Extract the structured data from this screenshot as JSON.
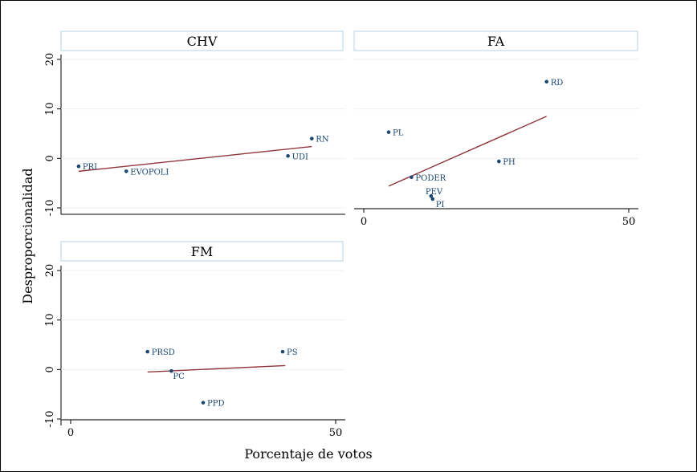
{
  "figure": {
    "ylabel": "Desproporcionalidad",
    "xlabel": "Porcentaje de votos"
  },
  "style": {
    "point_color": "#1a476f",
    "label_color": "#1a476f",
    "fit_color": "#90353b",
    "strip_border": "#b6d2e4",
    "axis_color": "#000000"
  },
  "chart_data": [
    {
      "type": "scatter",
      "title": "CHV",
      "xlim": [
        0,
        50
      ],
      "ylim": [
        -10,
        20
      ],
      "xticks": [],
      "yticks": [
        -10,
        0,
        10,
        20
      ],
      "points": [
        {
          "label": "PRI",
          "x": 1.5,
          "y": -1.6
        },
        {
          "label": "EVOPOLI",
          "x": 10.5,
          "y": -2.6
        },
        {
          "label": "RN",
          "x": 45.5,
          "y": 4.0
        },
        {
          "label": "UDI",
          "x": 41.0,
          "y": 0.5
        }
      ],
      "fit": {
        "x": [
          1.5,
          45.5
        ],
        "y": [
          -2.6,
          2.4
        ]
      }
    },
    {
      "type": "scatter",
      "title": "FA",
      "xlim": [
        0,
        50
      ],
      "ylim": [
        -10,
        20
      ],
      "xticks": [
        0,
        50
      ],
      "yticks": [],
      "points": [
        {
          "label": "RD",
          "x": 34.5,
          "y": 15.5
        },
        {
          "label": "PL",
          "x": 4.7,
          "y": 5.3
        },
        {
          "label": "PH",
          "x": 25.5,
          "y": -0.6
        },
        {
          "label": "PODER",
          "x": 9.0,
          "y": -3.8
        },
        {
          "label": "PEV",
          "x": 12.7,
          "y": -7.6
        },
        {
          "label": "PI",
          "x": 13.0,
          "y": -8.2
        }
      ],
      "fit": {
        "x": [
          4.7,
          34.5
        ],
        "y": [
          -5.6,
          8.5
        ]
      }
    },
    {
      "type": "scatter",
      "title": "FM",
      "xlim": [
        0,
        50
      ],
      "ylim": [
        -10,
        20
      ],
      "xticks": [
        0,
        50
      ],
      "yticks": [
        -10,
        0,
        10,
        20
      ],
      "points": [
        {
          "label": "PRSD",
          "x": 14.5,
          "y": 3.6
        },
        {
          "label": "PS",
          "x": 40.0,
          "y": 3.6
        },
        {
          "label": "PC",
          "x": 19.0,
          "y": -0.3
        },
        {
          "label": "PPD",
          "x": 25.0,
          "y": -6.7
        }
      ],
      "fit": {
        "x": [
          14.5,
          40.5
        ],
        "y": [
          -0.5,
          0.8
        ]
      }
    }
  ]
}
